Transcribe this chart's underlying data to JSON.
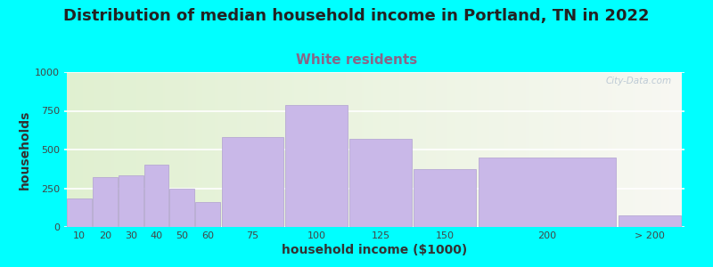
{
  "title": "Distribution of median household income in Portland, TN in 2022",
  "subtitle": "White residents",
  "xlabel": "household income ($1000)",
  "ylabel": "households",
  "background_color": "#00FFFF",
  "bar_color": "#C9B8E8",
  "bar_edge_color": "#B0A0D0",
  "categories": [
    "10",
    "20",
    "30",
    "40",
    "50",
    "60",
    "75",
    "100",
    "125",
    "150",
    "200",
    "> 200"
  ],
  "values": [
    185,
    320,
    335,
    405,
    245,
    160,
    580,
    790,
    570,
    375,
    450,
    75
  ],
  "bar_lefts": [
    0,
    10,
    20,
    30,
    40,
    50,
    60,
    85,
    110,
    135,
    160,
    215
  ],
  "bar_widths": [
    10,
    10,
    10,
    10,
    10,
    10,
    25,
    25,
    25,
    25,
    55,
    25
  ],
  "ylim": [
    0,
    1000
  ],
  "yticks": [
    0,
    250,
    500,
    750,
    1000
  ],
  "title_fontsize": 13,
  "subtitle_fontsize": 11,
  "subtitle_color": "#886688",
  "watermark": "City-Data.com"
}
